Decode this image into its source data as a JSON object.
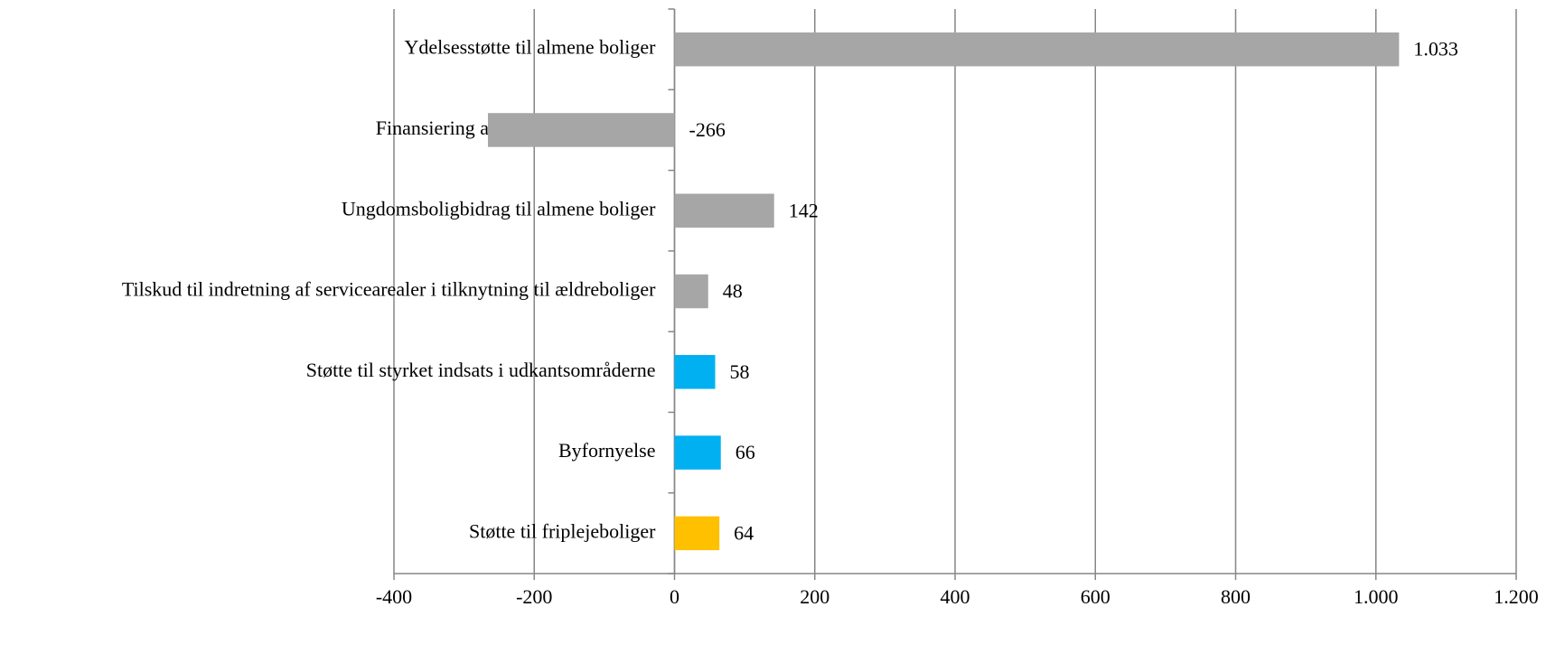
{
  "chart_data": {
    "type": "bar",
    "orientation": "horizontal",
    "categories": [
      "Ydelsesstøtte til almene boliger",
      "Finansiering af almen boligbyggeri",
      "Ungdomsboligbidrag til almene boliger",
      "Tilskud til indretning af servicearealer i tilknytning til ældreboliger",
      "Støtte til styrket indsats i udkantsområderne",
      "Byfornyelse",
      "Støtte til friplejeboliger"
    ],
    "values": [
      1033,
      -266,
      142,
      48,
      58,
      66,
      64
    ],
    "value_labels": [
      "1.033",
      "-266",
      "142",
      "48",
      "58",
      "66",
      "64"
    ],
    "colors": [
      "#a6a6a6",
      "#a6a6a6",
      "#a6a6a6",
      "#a6a6a6",
      "#00b0f0",
      "#00b0f0",
      "#ffc000"
    ],
    "xlim": [
      -400,
      1200
    ],
    "xticks": [
      -400,
      -200,
      0,
      200,
      400,
      600,
      800,
      {
        "value": 1000,
        "label": "1.000"
      },
      {
        "value": 1200,
        "label": "1.200"
      }
    ],
    "grid": true
  }
}
